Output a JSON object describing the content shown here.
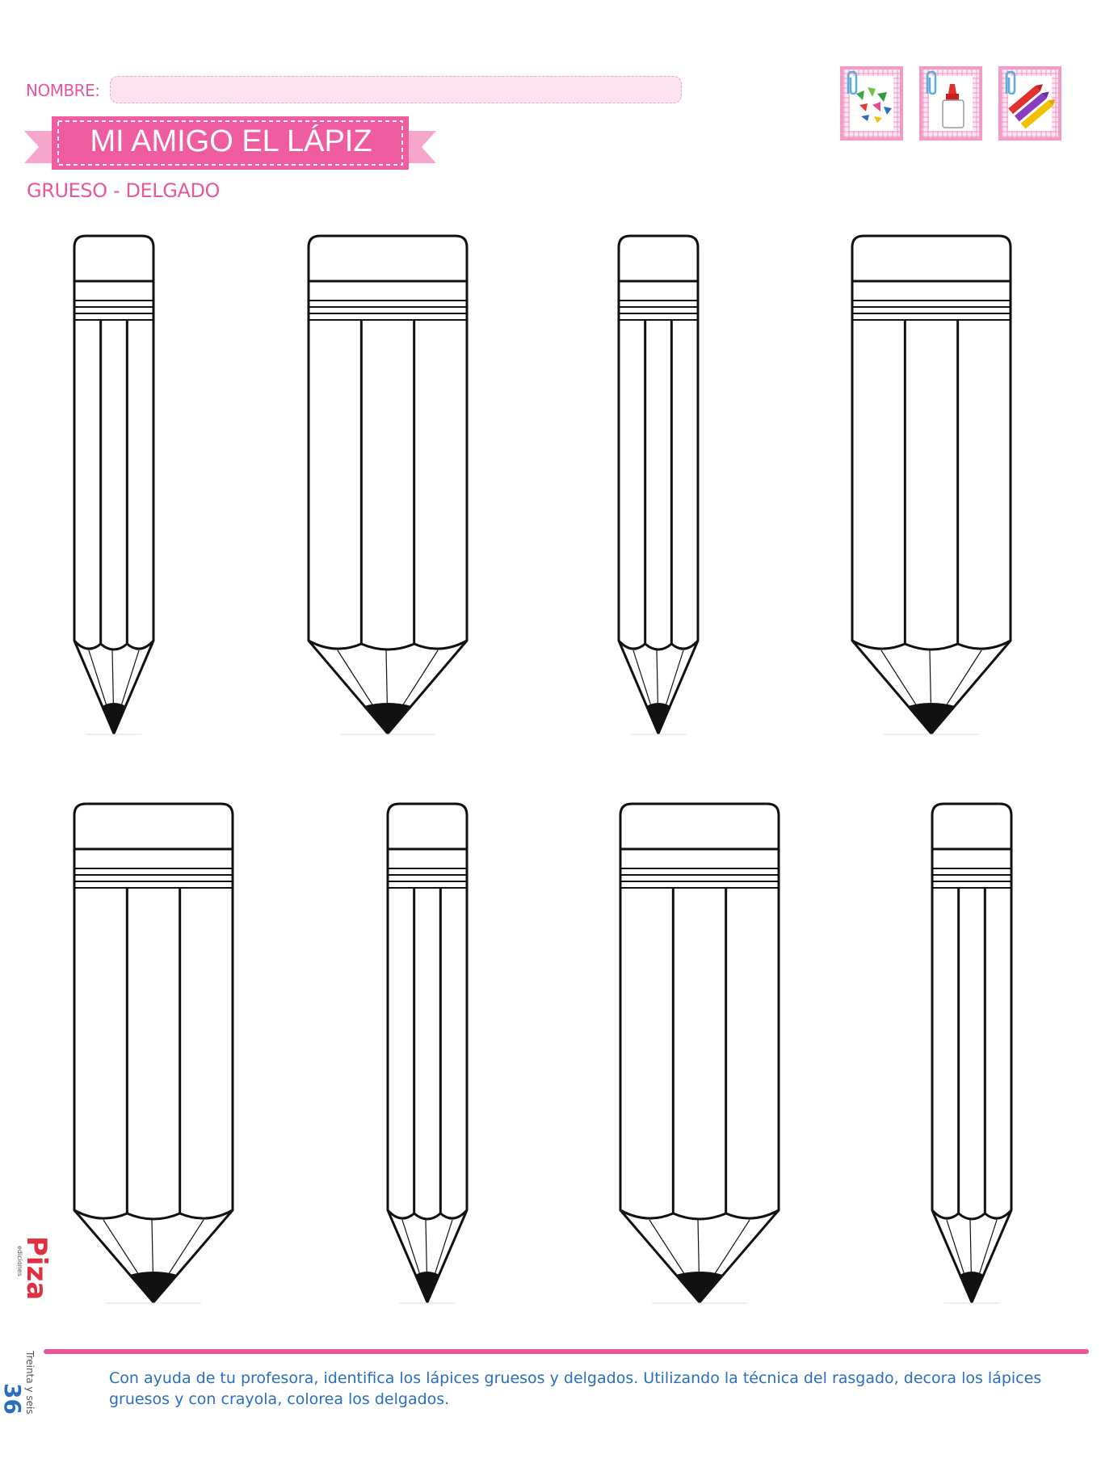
{
  "header": {
    "name_label": "NOMBRE:",
    "title": "MI AMIGO EL LÁPIZ",
    "subtitle": "GRUESO - DELGADO"
  },
  "activity_icons": [
    {
      "icon": "torn-paper-pieces-icon"
    },
    {
      "icon": "glue-bottle-icon"
    },
    {
      "icon": "crayons-icon"
    }
  ],
  "pencils": [
    {
      "row": 1,
      "size": "delgado"
    },
    {
      "row": 1,
      "size": "grueso"
    },
    {
      "row": 1,
      "size": "delgado"
    },
    {
      "row": 1,
      "size": "grueso"
    },
    {
      "row": 2,
      "size": "grueso"
    },
    {
      "row": 2,
      "size": "delgado"
    },
    {
      "row": 2,
      "size": "grueso"
    },
    {
      "row": 2,
      "size": "delgado"
    }
  ],
  "footer": {
    "page_number": "36",
    "page_words": "Treinta y seis",
    "publisher_logo": "Piza ediciones",
    "instructions": "Con ayuda de tu profesora, identifica los lápices gruesos y delgados. Utilizando la técnica del rasgado, decora los lápices gruesos y con crayola, colorea los delgados."
  },
  "colors": {
    "accent_pink": "#e8579a",
    "banner_pink": "#ef5da0",
    "instruction_blue": "#2a6fbf"
  }
}
